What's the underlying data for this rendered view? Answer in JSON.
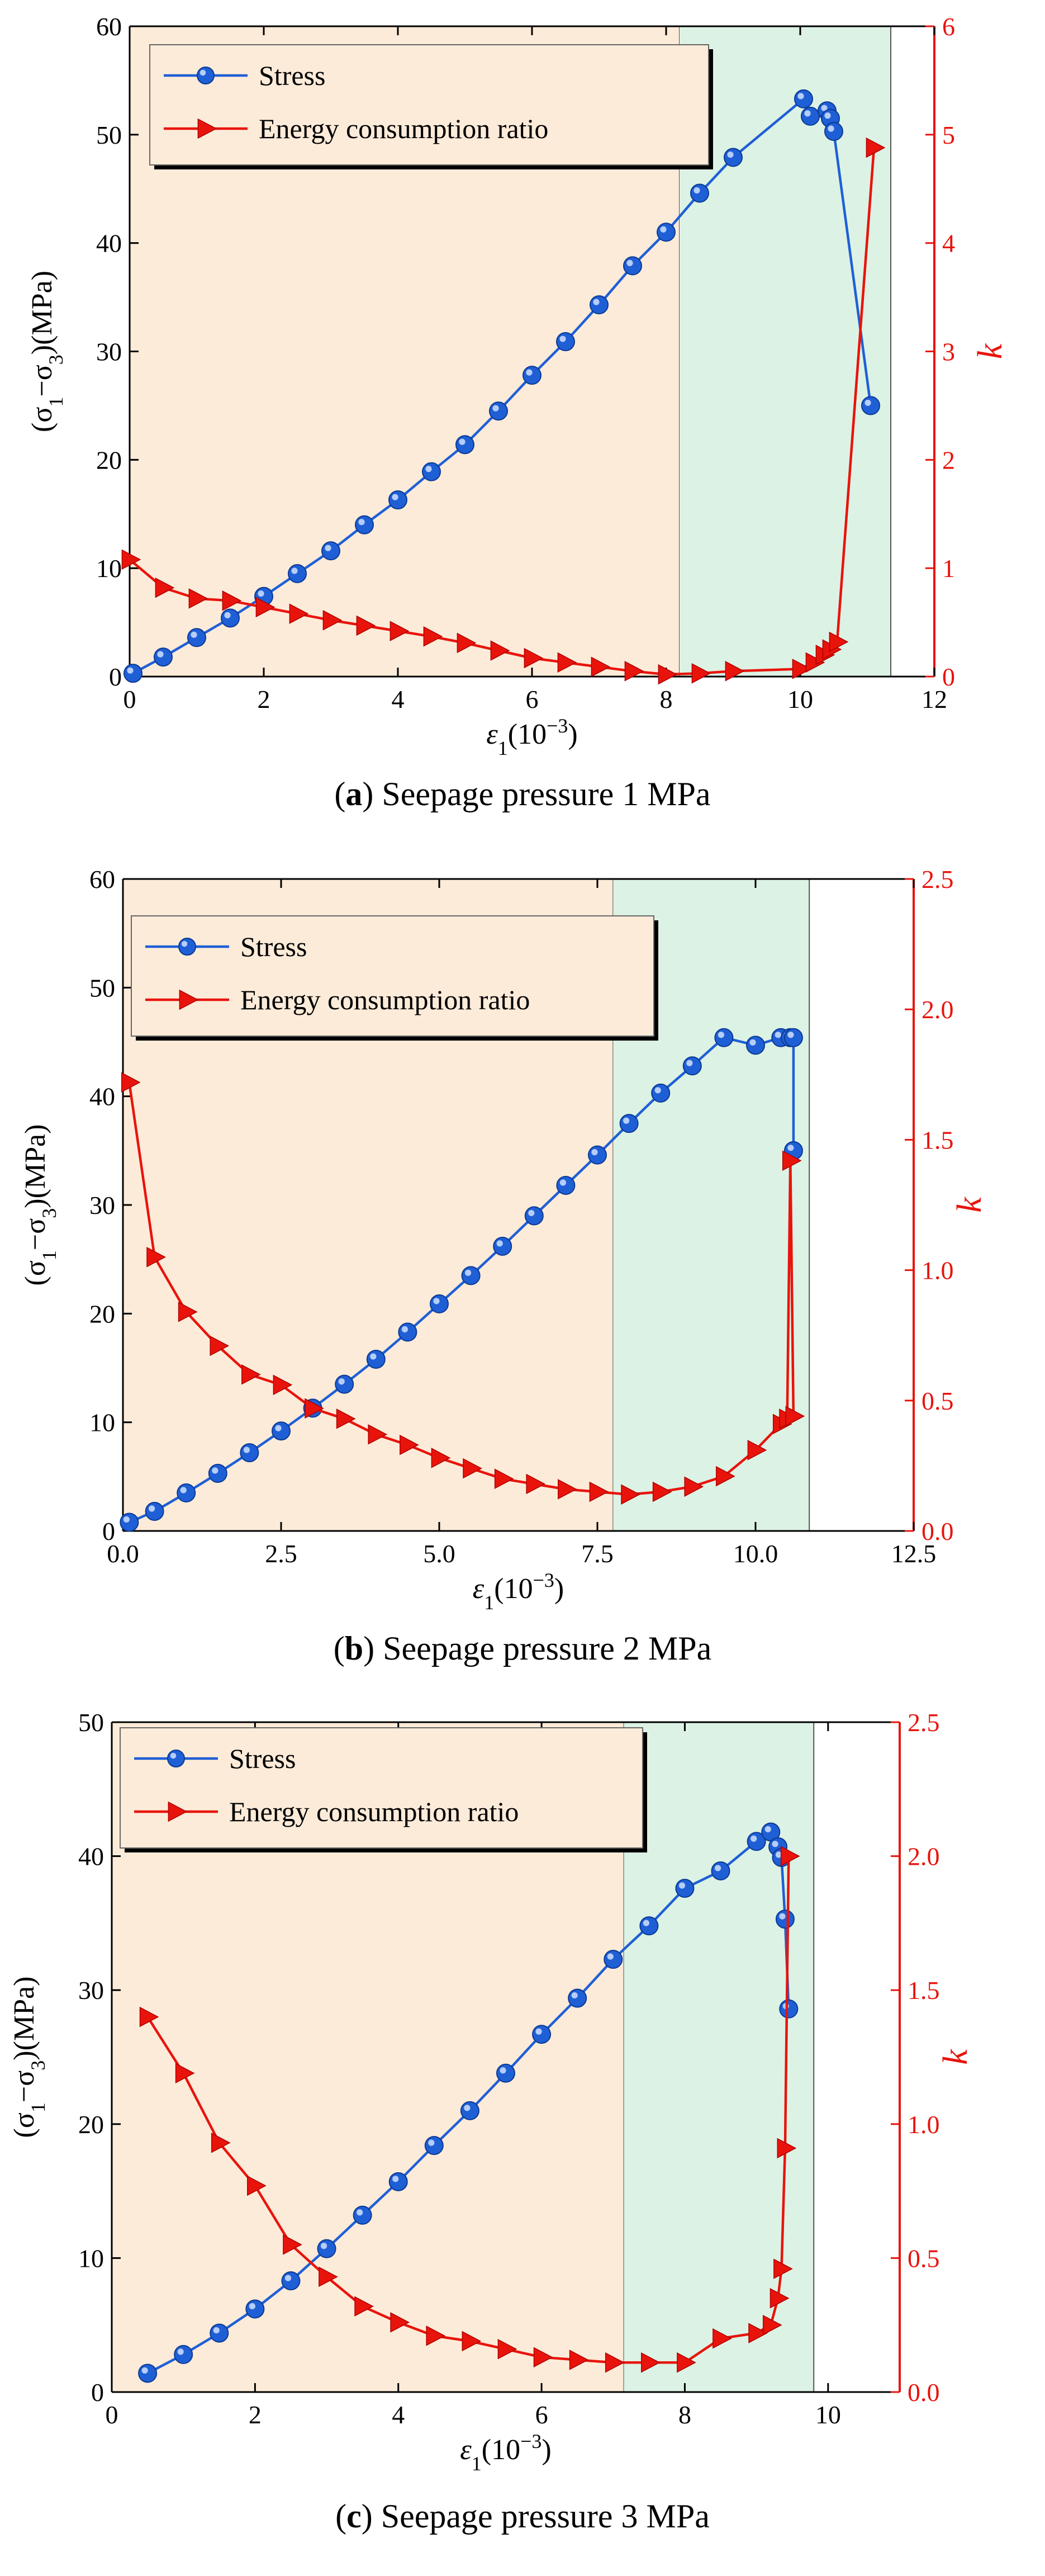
{
  "chart_data": [
    {
      "type": "line",
      "caption": {
        "letter": "a",
        "text": "Seepage pressure 1 MPa"
      },
      "xlabel": "ε1(10−3)",
      "ylabel": "(σ1−σ3)(MPa)",
      "y2label": "k",
      "xlim": [
        0,
        12
      ],
      "ylim": [
        0,
        60
      ],
      "y2lim": [
        0,
        6
      ],
      "x_ticks": [
        0,
        2,
        4,
        6,
        8,
        10,
        12
      ],
      "x_tick_labels": [
        "0",
        "2",
        "4",
        "6",
        "8",
        "10",
        "12"
      ],
      "y_ticks": [
        0,
        10,
        20,
        30,
        40,
        50,
        60
      ],
      "y_tick_labels": [
        "0",
        "10",
        "20",
        "30",
        "40",
        "50",
        "60"
      ],
      "y2_ticks": [
        0,
        1,
        2,
        3,
        4,
        5,
        6
      ],
      "y2_tick_labels": [
        "0",
        "1",
        "2",
        "3",
        "4",
        "5",
        "6"
      ],
      "regions": [
        {
          "x0": 0,
          "x1": 8.2,
          "color": "#fdebd9"
        },
        {
          "x0": 8.2,
          "x1": 11.35,
          "color": "#dcf2e4"
        }
      ],
      "series": [
        {
          "name": "Stress",
          "axis": "left",
          "marker": "circle",
          "color": "#1f5fd6",
          "x": [
            0.05,
            0.5,
            1.0,
            1.5,
            2.0,
            2.5,
            3.0,
            3.5,
            4.0,
            4.5,
            5.0,
            5.5,
            6.0,
            6.5,
            7.0,
            7.5,
            8.0,
            8.5,
            9.0,
            10.05,
            10.15,
            10.4,
            10.45,
            10.5,
            11.05
          ],
          "y": [
            0.3,
            1.8,
            3.6,
            5.4,
            7.4,
            9.5,
            11.6,
            14.0,
            16.3,
            18.9,
            21.4,
            24.5,
            27.8,
            30.9,
            34.3,
            37.9,
            41.0,
            44.6,
            47.9,
            53.3,
            51.7,
            52.2,
            51.5,
            50.3,
            25.0
          ]
        },
        {
          "name": "Energy consumption ratio",
          "axis": "right",
          "marker": "triangle-right",
          "color": "#e8140c",
          "x": [
            0.0,
            0.5,
            1.0,
            1.5,
            2.0,
            2.5,
            3.0,
            3.5,
            4.0,
            4.5,
            5.0,
            5.5,
            6.0,
            6.5,
            7.0,
            7.5,
            8.0,
            8.5,
            9.0,
            10.0,
            10.2,
            10.35,
            10.45,
            10.55,
            11.1
          ],
          "y": [
            1.08,
            0.82,
            0.72,
            0.7,
            0.64,
            0.58,
            0.52,
            0.47,
            0.42,
            0.37,
            0.31,
            0.24,
            0.17,
            0.13,
            0.09,
            0.05,
            0.02,
            0.03,
            0.05,
            0.07,
            0.13,
            0.2,
            0.25,
            0.32,
            4.88
          ]
        }
      ]
    },
    {
      "type": "line",
      "caption": {
        "letter": "b",
        "text": "Seepage pressure 2 MPa"
      },
      "xlabel": "ε1(10−3)",
      "ylabel": "(σ1−σ3)(MPa)",
      "y2label": "k",
      "xlim": [
        0,
        12.5
      ],
      "ylim": [
        0,
        60
      ],
      "y2lim": [
        0,
        2.5
      ],
      "x_ticks": [
        0,
        2.5,
        5,
        7.5,
        10,
        12.5
      ],
      "x_tick_labels": [
        "0.0",
        "2.5",
        "5.0",
        "7.5",
        "10.0",
        "12.5"
      ],
      "y_ticks": [
        0,
        10,
        20,
        30,
        40,
        50,
        60
      ],
      "y_tick_labels": [
        "0",
        "10",
        "20",
        "30",
        "40",
        "50",
        "60"
      ],
      "y2_ticks": [
        0,
        0.5,
        1.0,
        1.5,
        2.0,
        2.5
      ],
      "y2_tick_labels": [
        "0.0",
        "0.5",
        "1.0",
        "1.5",
        "2.0",
        "2.5"
      ],
      "regions": [
        {
          "x0": 0,
          "x1": 7.75,
          "color": "#fdebd9"
        },
        {
          "x0": 7.75,
          "x1": 10.85,
          "color": "#dcf2e4"
        }
      ],
      "series": [
        {
          "name": "Stress",
          "axis": "left",
          "marker": "circle",
          "color": "#1f5fd6",
          "x": [
            0.1,
            0.5,
            1.0,
            1.5,
            2.0,
            2.5,
            3.0,
            3.5,
            4.0,
            4.5,
            5.0,
            5.5,
            6.0,
            6.5,
            7.0,
            7.5,
            8.0,
            8.5,
            9.0,
            9.5,
            10.0,
            10.4,
            10.55,
            10.6,
            10.6
          ],
          "y": [
            0.8,
            1.8,
            3.5,
            5.3,
            7.2,
            9.2,
            11.3,
            13.5,
            15.8,
            18.3,
            20.9,
            23.5,
            26.2,
            29.0,
            31.8,
            34.6,
            37.5,
            40.3,
            42.8,
            45.4,
            44.7,
            45.4,
            45.4,
            45.4,
            35.0
          ]
        },
        {
          "name": "Energy consumption ratio",
          "axis": "right",
          "marker": "triangle-right",
          "color": "#e8140c",
          "x": [
            0.1,
            0.5,
            1.0,
            1.5,
            2.0,
            2.5,
            3.0,
            3.5,
            4.0,
            4.5,
            5.0,
            5.5,
            6.0,
            6.5,
            7.0,
            7.5,
            8.0,
            8.5,
            9.0,
            9.5,
            10.0,
            10.4,
            10.5,
            10.55,
            10.6
          ],
          "y": [
            1.72,
            1.05,
            0.84,
            0.71,
            0.6,
            0.56,
            0.47,
            0.43,
            0.37,
            0.33,
            0.28,
            0.24,
            0.2,
            0.18,
            0.16,
            0.15,
            0.14,
            0.15,
            0.17,
            0.21,
            0.31,
            0.41,
            0.43,
            1.42,
            0.44
          ]
        }
      ]
    },
    {
      "type": "line",
      "caption": {
        "letter": "c",
        "text": "Seepage pressure 3 MPa"
      },
      "xlabel": "ε1(10−3)",
      "ylabel": "(σ1−σ3)(MPa)",
      "y2label": "k",
      "xlim": [
        0,
        11
      ],
      "ylim": [
        0,
        50
      ],
      "y2lim": [
        0,
        2.5
      ],
      "x_ticks": [
        0,
        2,
        4,
        6,
        8,
        10
      ],
      "x_tick_labels": [
        "0",
        "2",
        "4",
        "6",
        "8",
        "10"
      ],
      "y_ticks": [
        0,
        10,
        20,
        30,
        40,
        50
      ],
      "y_tick_labels": [
        "0",
        "10",
        "20",
        "30",
        "40",
        "50"
      ],
      "y2_ticks": [
        0,
        0.5,
        1.0,
        1.5,
        2.0,
        2.5
      ],
      "y2_tick_labels": [
        "0.0",
        "0.5",
        "1.0",
        "1.5",
        "2.0",
        "2.5"
      ],
      "regions": [
        {
          "x0": 0,
          "x1": 7.15,
          "color": "#fdebd9"
        },
        {
          "x0": 7.15,
          "x1": 9.8,
          "color": "#dcf2e4"
        }
      ],
      "series": [
        {
          "name": "Stress",
          "axis": "left",
          "marker": "circle",
          "color": "#1f5fd6",
          "x": [
            0.5,
            1.0,
            1.5,
            2.0,
            2.5,
            3.0,
            3.5,
            4.0,
            4.5,
            5.0,
            5.5,
            6.0,
            6.5,
            7.0,
            7.5,
            8.0,
            8.5,
            9.0,
            9.2,
            9.3,
            9.35,
            9.4,
            9.45
          ],
          "y": [
            1.4,
            2.8,
            4.4,
            6.2,
            8.3,
            10.7,
            13.2,
            15.7,
            18.4,
            21.0,
            23.8,
            26.7,
            29.4,
            32.3,
            34.8,
            37.6,
            38.9,
            41.1,
            41.8,
            40.7,
            39.9,
            35.3,
            28.6
          ]
        },
        {
          "name": "Energy consumption ratio",
          "axis": "right",
          "marker": "triangle-right",
          "color": "#e8140c",
          "x": [
            0.5,
            1.0,
            1.5,
            2.0,
            2.5,
            3.0,
            3.5,
            4.0,
            4.5,
            5.0,
            5.5,
            6.0,
            6.5,
            7.0,
            7.5,
            8.0,
            8.5,
            9.0,
            9.2,
            9.3,
            9.35,
            9.4,
            9.45
          ],
          "y": [
            1.4,
            1.19,
            0.93,
            0.77,
            0.55,
            0.43,
            0.32,
            0.26,
            0.21,
            0.19,
            0.16,
            0.13,
            0.12,
            0.11,
            0.11,
            0.11,
            0.2,
            0.22,
            0.25,
            0.35,
            0.46,
            0.91,
            2.0
          ]
        }
      ]
    }
  ]
}
